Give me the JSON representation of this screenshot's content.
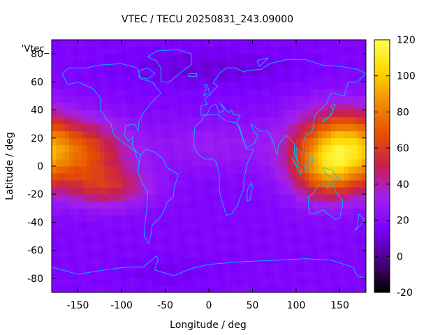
{
  "chart_data": {
    "type": "heatmap",
    "title": "VTEC / TECU 20250831_243.09000",
    "xlabel": "Longitude / deg",
    "ylabel": "Latitude / deg",
    "xlim": [
      -180,
      180
    ],
    "ylim": [
      -90,
      90
    ],
    "x_ticks": [
      -150,
      -100,
      -50,
      0,
      50,
      100,
      150
    ],
    "y_ticks": [
      -80,
      -60,
      -40,
      -20,
      0,
      20,
      40,
      60,
      80
    ],
    "colorbar": {
      "range": [
        -20,
        120
      ],
      "ticks": [
        -20,
        0,
        20,
        40,
        60,
        80,
        100,
        120
      ],
      "colormap": [
        "#000000",
        "#4b0082",
        "#7a00ff",
        "#a020f0",
        "#c81e50",
        "#e65000",
        "#f08c00",
        "#ffd700",
        "#ffff50"
      ]
    },
    "legend_label": "'Vtec_",
    "grid": false,
    "coastline_color": "#00bfff",
    "field_model": {
      "background": 18,
      "peaks": [
        {
          "lon": -150,
          "lat": 10,
          "lon_width": 40,
          "lat_width": 16,
          "value": 48
        },
        {
          "lon": -115,
          "lat": -15,
          "lon_width": 35,
          "lat_width": 10,
          "value": 30
        },
        {
          "lon": 155,
          "lat": 15,
          "lon_width": 30,
          "lat_width": 18,
          "value": 55
        },
        {
          "lon": 135,
          "lat": -5,
          "lon_width": 25,
          "lat_width": 14,
          "value": 35
        },
        {
          "lon": 120,
          "lat": 10,
          "lon_width": 30,
          "lat_width": 20,
          "value": 22
        },
        {
          "lon": -10,
          "lat": 15,
          "lon_width": 40,
          "lat_width": 12,
          "value": 10
        },
        {
          "lon": 60,
          "lat": 15,
          "lon_width": 40,
          "lat_width": 15,
          "value": 6
        }
      ],
      "troughs": [
        {
          "lon": 0,
          "lat": 70,
          "lon_width": 80,
          "lat_width": 10,
          "value": -8
        },
        {
          "lon": -50,
          "lat": -75,
          "lon_width": 40,
          "lat_width": 8,
          "value": -5
        }
      ]
    }
  }
}
